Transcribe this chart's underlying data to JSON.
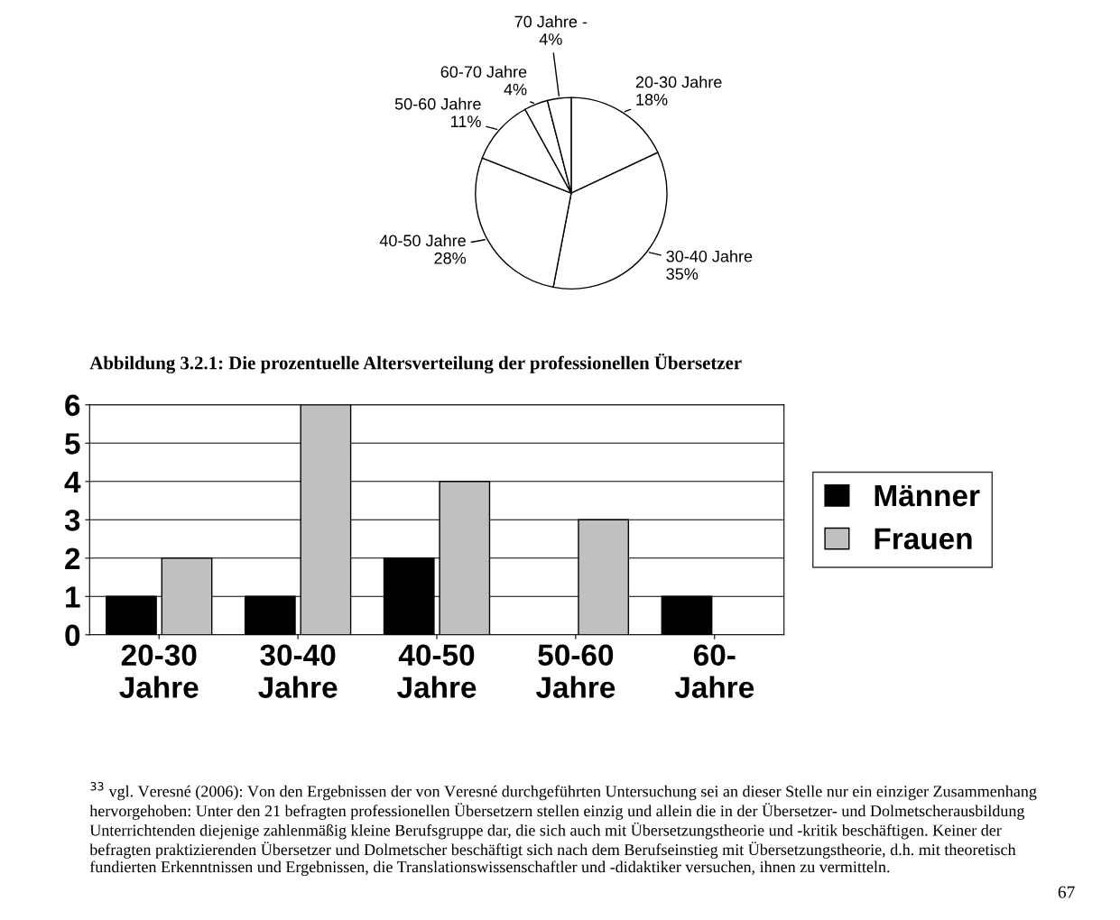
{
  "chart_data": [
    {
      "type": "pie",
      "categories": [
        "20-30 Jahre",
        "30-40 Jahre",
        "40-50 Jahre",
        "50-60 Jahre",
        "60-70 Jahre",
        "70 Jahre -"
      ],
      "values": [
        18,
        35,
        28,
        11,
        4,
        4
      ],
      "value_labels": [
        "18%",
        "35%",
        "28%",
        "11%",
        "4%",
        "4%"
      ],
      "colors": [
        "#ffffff",
        "#ffffff",
        "#ffffff",
        "#ffffff",
        "#ffffff",
        "#ffffff"
      ],
      "annotations": [
        "Abbildung 3.2.1: Die prozentuelle Altersverteilung der professionellen Übersetzer"
      ]
    },
    {
      "type": "bar",
      "categories": [
        "20-30 Jahre",
        "30-40 Jahre",
        "40-50 Jahre",
        "50-60 Jahre",
        "60- Jahre"
      ],
      "series": [
        {
          "name": "Männer",
          "color": "#000000",
          "values": [
            1,
            1,
            2,
            0,
            1
          ]
        },
        {
          "name": "Frauen",
          "color": "#c0c0c0",
          "values": [
            2,
            6,
            4,
            3,
            0
          ]
        }
      ],
      "ylim": [
        0,
        6
      ],
      "yticks": [
        0,
        1,
        2,
        3,
        4,
        5,
        6
      ],
      "grid": "y",
      "legend": "right",
      "annotations": [
        "$^{33}$ vgl. Veresné (2006): Von den Ergebnissen der von Veresné durchgeführten Untersuchung sei an dieser Stelle nur ein einziger Zusammenhang hervorgehoben: Unter den 21 befragten professionellen Übersetzern stellen einzig und allein die in der Übersetzer- und Dolmetscherausbildung Unterrichtenden diejenige zahlenmäßig kleine Berufsgruppe dar, die sich auch mit Übersetzungstheorie und -kritik beschäftigen. Keiner der befragten praktizierenden Übersetzer und Dolmetscher beschäftigt sich nach dem Berufseinstieg mit Übersetzungstheorie, d.h. mit theoretisch fundierten Erkenntnissen und Ergebnissen, die Translationswissenschaftler und -didaktiker versuchen, ihnen zu vermitteln.",
        "67"
      ]
    }
  ]
}
